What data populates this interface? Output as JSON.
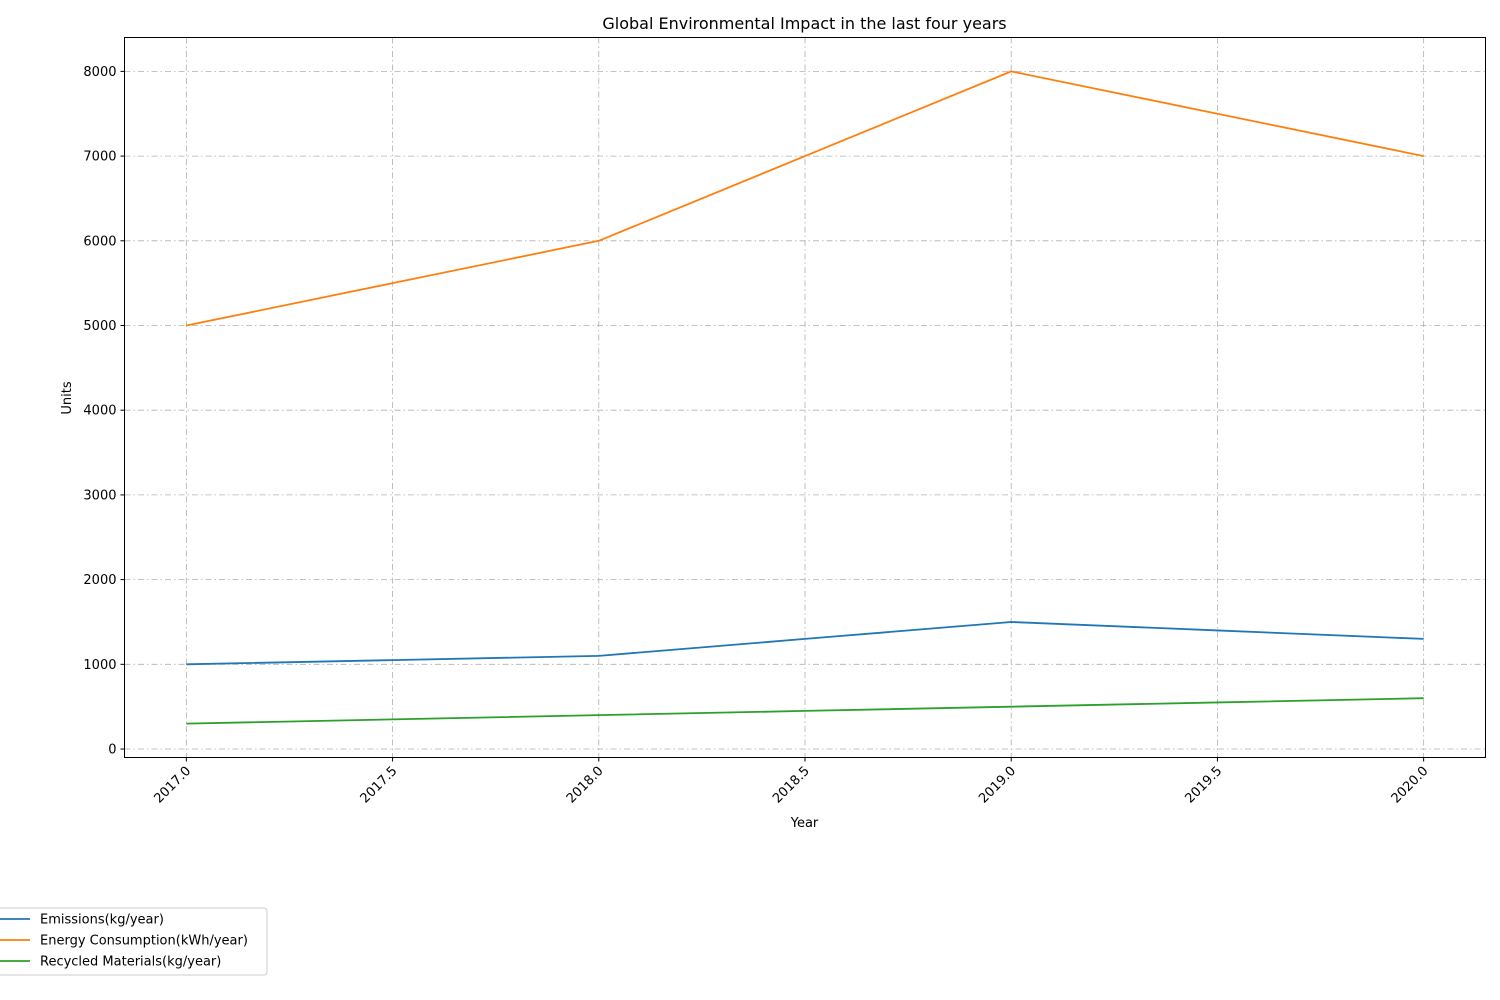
{
  "chart_data": {
    "type": "line",
    "title": "Global Environmental Impact in the last four years",
    "xlabel": "Year",
    "ylabel": "Units",
    "x": [
      2017,
      2017.5,
      2018,
      2018.5,
      2019,
      2019.5,
      2020
    ],
    "xticks": [
      "2017.0",
      "2017.5",
      "2018.0",
      "2018.5",
      "2019.0",
      "2019.5",
      "2020.0"
    ],
    "yticks": [
      "0",
      "1000",
      "2000",
      "3000",
      "4000",
      "5000",
      "6000",
      "7000",
      "8000"
    ],
    "xlim": [
      2016.85,
      2020.15
    ],
    "ylim": [
      -100,
      8400
    ],
    "grid": true,
    "legend_placement": "bottom-left, outside the plot area",
    "series": [
      {
        "name": "Emissions(kg/year)",
        "color": "#1f77b4",
        "values": [
          1000,
          1050,
          1100,
          1300,
          1500,
          1400,
          1300
        ]
      },
      {
        "name": "Energy Consumption(kWh/year)",
        "color": "#ff7f0e",
        "values": [
          5000,
          5500,
          6000,
          7000,
          8000,
          7500,
          7000
        ]
      },
      {
        "name": "Recycled Materials(kg/year)",
        "color": "#2ca02c",
        "values": [
          300,
          350,
          400,
          450,
          500,
          550,
          600
        ]
      }
    ]
  }
}
